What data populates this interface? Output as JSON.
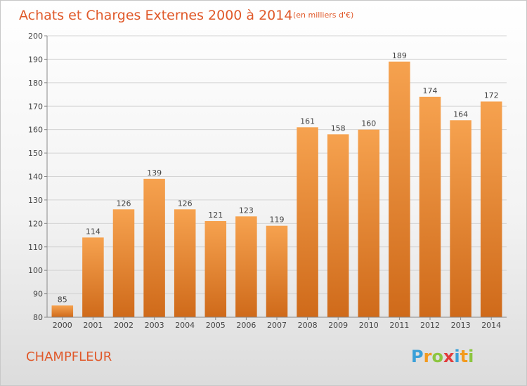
{
  "chart_data": {
    "type": "bar",
    "title": "Achats et Charges Externes 2000 à 2014",
    "unit_label": "(en milliers d'€)",
    "categories": [
      "2000",
      "2001",
      "2002",
      "2003",
      "2004",
      "2005",
      "2006",
      "2007",
      "2008",
      "2009",
      "2010",
      "2011",
      "2012",
      "2013",
      "2014"
    ],
    "values": [
      85,
      114,
      126,
      139,
      126,
      121,
      123,
      119,
      161,
      158,
      160,
      189,
      174,
      164,
      172
    ],
    "ylim": [
      80,
      200
    ],
    "yticks": [
      80,
      90,
      100,
      110,
      120,
      130,
      140,
      150,
      160,
      170,
      180,
      190,
      200
    ],
    "grid": true,
    "bar_color_top": "#f6a24f",
    "bar_color_bottom": "#cf6a1a",
    "xlabel": "",
    "ylabel": ""
  },
  "commune": "CHAMPFLEUR",
  "brand": {
    "letters": [
      "P",
      "r",
      "o",
      "x",
      "i",
      "t",
      "i"
    ],
    "colors": [
      "#3aa0d8",
      "#f39a1e",
      "#8cc63f",
      "#e23b3b",
      "#3aa0d8",
      "#f39a1e",
      "#8cc63f"
    ]
  }
}
